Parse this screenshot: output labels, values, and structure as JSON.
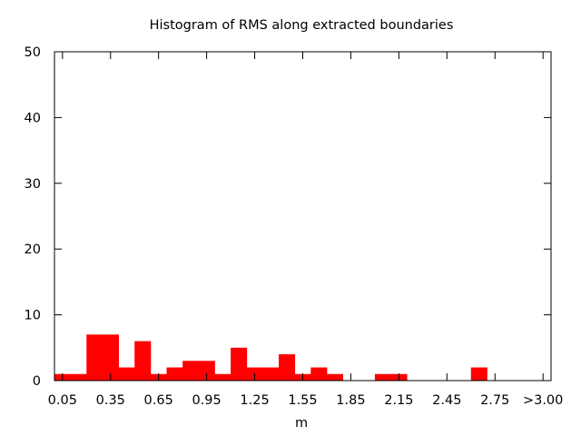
{
  "chart_data": {
    "type": "bar",
    "title": "Histogram of RMS along extracted boundaries",
    "xlabel": "m",
    "ylabel": "",
    "ylim": [
      0,
      50
    ],
    "yticks": [
      "0",
      "10",
      "20",
      "30",
      "40",
      "50"
    ],
    "xticks": [
      "0.05",
      "0.35",
      "0.65",
      "0.95",
      "1.25",
      "1.55",
      "1.85",
      "2.15",
      "2.45",
      "2.75",
      ">3.00"
    ],
    "bin_width": 0.1,
    "bin_starts": [
      0.0,
      0.1,
      0.2,
      0.3,
      0.4,
      0.5,
      0.6,
      0.7,
      0.8,
      0.9,
      1.0,
      1.1,
      1.2,
      1.3,
      1.4,
      1.5,
      1.6,
      1.7,
      1.8,
      1.9,
      2.0,
      2.1,
      2.2,
      2.3,
      2.4,
      2.5,
      2.6,
      2.7,
      2.8,
      2.9
    ],
    "values": [
      1,
      1,
      7,
      7,
      2,
      6,
      1,
      2,
      3,
      3,
      1,
      5,
      2,
      2,
      4,
      1,
      2,
      1,
      0,
      0,
      1,
      1,
      0,
      0,
      0,
      0,
      2,
      0,
      0,
      0
    ],
    "bar_color": "#ff0000",
    "grid": false,
    "legend": "none"
  }
}
